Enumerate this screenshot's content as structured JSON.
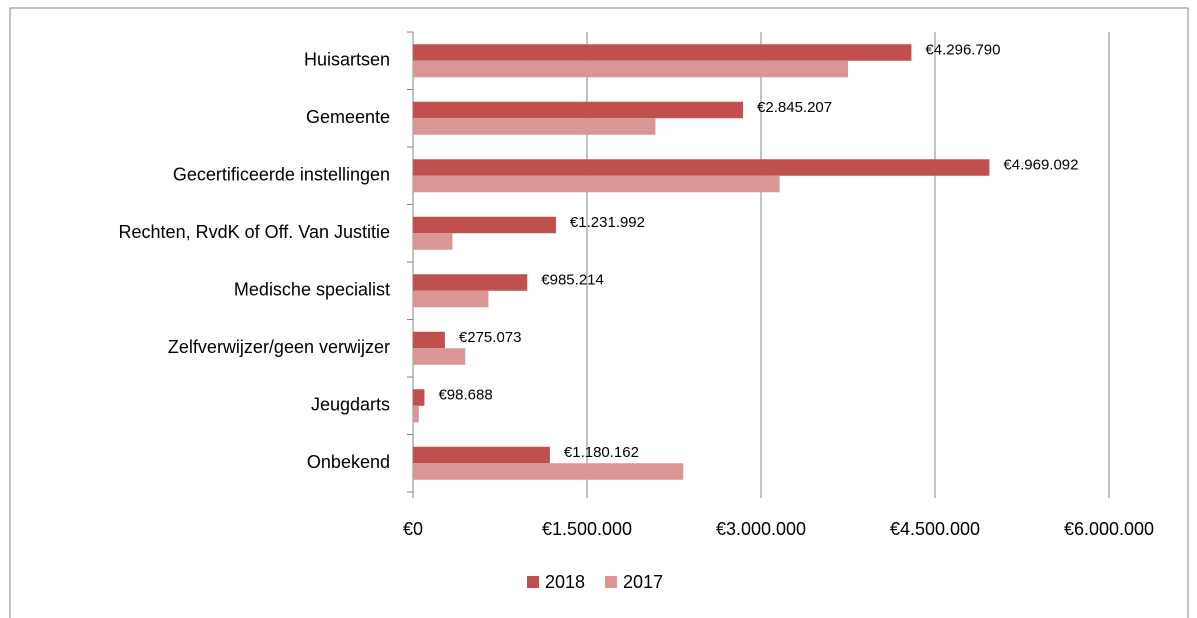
{
  "chart_data": {
    "type": "bar",
    "orientation": "horizontal",
    "categories": [
      "Huisartsen",
      "Gemeente",
      "Gecertificeerde instellingen",
      "Rechten, RvdK of Off. Van Justitie",
      "Medische specialist",
      "Zelfverwijzer/geen verwijzer",
      "Jeugdarts",
      "Onbekend"
    ],
    "series": [
      {
        "name": "2018",
        "color": "#c0504d",
        "values": [
          4296790,
          2845207,
          4969092,
          1231992,
          985214,
          275073,
          98688,
          1180162
        ],
        "value_labels": [
          "€4.296.790",
          "€2.845.207",
          "€4.969.092",
          "€1.231.992",
          "€985.214",
          "€275.073",
          "€98.688",
          "€1.180.162"
        ]
      },
      {
        "name": "2017",
        "color": "#d99694",
        "values": [
          3750000,
          2090000,
          3160000,
          340000,
          650000,
          450000,
          50000,
          2330000
        ]
      }
    ],
    "xlim": [
      0,
      6000000
    ],
    "xticks": [
      {
        "value": 0,
        "label": "€0"
      },
      {
        "value": 1500000,
        "label": "€1.500.000"
      },
      {
        "value": 3000000,
        "label": "€3.000.000"
      },
      {
        "value": 4500000,
        "label": "€4.500.000"
      },
      {
        "value": 6000000,
        "label": "€6.000.000"
      }
    ],
    "grid": true,
    "legend": "bottom"
  }
}
